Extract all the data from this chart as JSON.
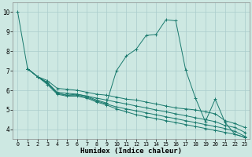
{
  "xlabel": "Humidex (Indice chaleur)",
  "bg_color": "#cde8e2",
  "grid_color": "#aacccc",
  "line_color": "#1a7a6e",
  "xlim": [
    -0.5,
    23.5
  ],
  "ylim": [
    3.5,
    10.5
  ],
  "yticks": [
    4,
    5,
    6,
    7,
    8,
    9,
    10
  ],
  "xticks": [
    0,
    1,
    2,
    3,
    4,
    5,
    6,
    7,
    8,
    9,
    10,
    11,
    12,
    13,
    14,
    15,
    16,
    17,
    18,
    19,
    20,
    21,
    22,
    23
  ],
  "main_x": [
    0,
    1,
    2,
    3,
    4,
    5,
    6,
    7,
    8,
    9,
    10,
    11,
    12,
    13,
    14,
    15,
    16,
    17,
    18,
    19,
    20,
    21,
    22,
    23
  ],
  "main_y": [
    10.0,
    7.1,
    6.7,
    6.4,
    5.85,
    5.75,
    5.8,
    5.7,
    5.5,
    5.35,
    7.0,
    7.75,
    8.1,
    8.8,
    8.85,
    9.6,
    9.55,
    7.05,
    5.6,
    4.4,
    5.55,
    4.35,
    3.75,
    3.6
  ],
  "flat_x": [
    1,
    2,
    3,
    4,
    5,
    6,
    7,
    8,
    9,
    10,
    11,
    12,
    13,
    14,
    15,
    16,
    17,
    18,
    19,
    20,
    21,
    22,
    23
  ],
  "flat_lines": [
    [
      7.1,
      6.7,
      6.5,
      6.1,
      6.05,
      6.0,
      5.9,
      5.8,
      5.75,
      5.65,
      5.55,
      5.5,
      5.4,
      5.3,
      5.2,
      5.1,
      5.05,
      5.0,
      4.9,
      4.8,
      4.45,
      4.3,
      4.1
    ],
    [
      7.1,
      6.7,
      6.4,
      5.9,
      5.85,
      5.8,
      5.7,
      5.6,
      5.5,
      5.4,
      5.3,
      5.2,
      5.1,
      5.0,
      4.9,
      4.8,
      4.7,
      4.6,
      4.5,
      4.4,
      4.2,
      4.1,
      3.85
    ],
    [
      7.1,
      6.7,
      6.35,
      5.85,
      5.75,
      5.75,
      5.65,
      5.45,
      5.3,
      5.15,
      5.05,
      4.95,
      4.85,
      4.75,
      4.65,
      4.55,
      4.45,
      4.35,
      4.25,
      4.15,
      4.05,
      3.9,
      3.65
    ],
    [
      7.1,
      6.7,
      6.3,
      5.8,
      5.7,
      5.7,
      5.6,
      5.4,
      5.25,
      5.05,
      4.9,
      4.75,
      4.65,
      4.55,
      4.45,
      4.35,
      4.25,
      4.15,
      4.05,
      3.95,
      3.85,
      3.75,
      3.6
    ]
  ]
}
